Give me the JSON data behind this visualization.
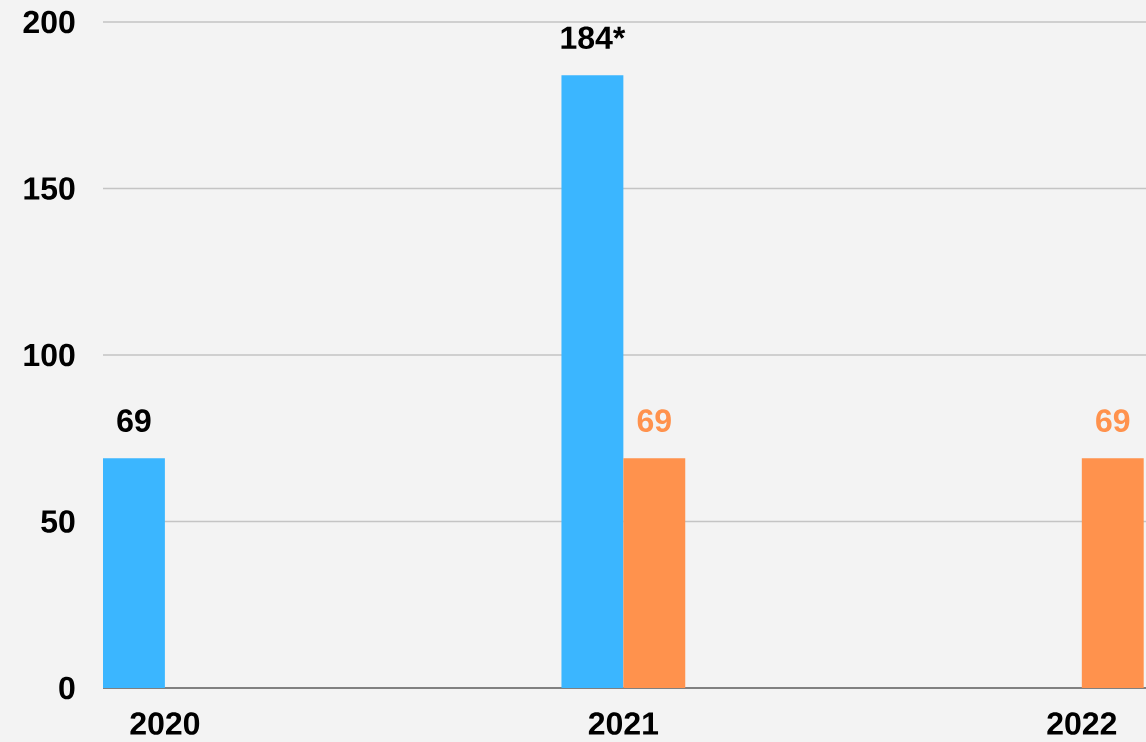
{
  "chart_data": {
    "type": "bar",
    "categories": [
      "2020",
      "2021",
      "2022"
    ],
    "series": [
      {
        "color": "#3bb6ff",
        "values": [
          69,
          184,
          null
        ],
        "value_labels": [
          "69",
          "184*",
          null
        ]
      },
      {
        "color": "#ff924d",
        "values": [
          null,
          69,
          69
        ],
        "value_labels": [
          null,
          "69",
          "69"
        ]
      }
    ],
    "ylim": [
      0,
      200
    ],
    "yticks": [
      0,
      50,
      100,
      150,
      200
    ],
    "grid": "y"
  }
}
